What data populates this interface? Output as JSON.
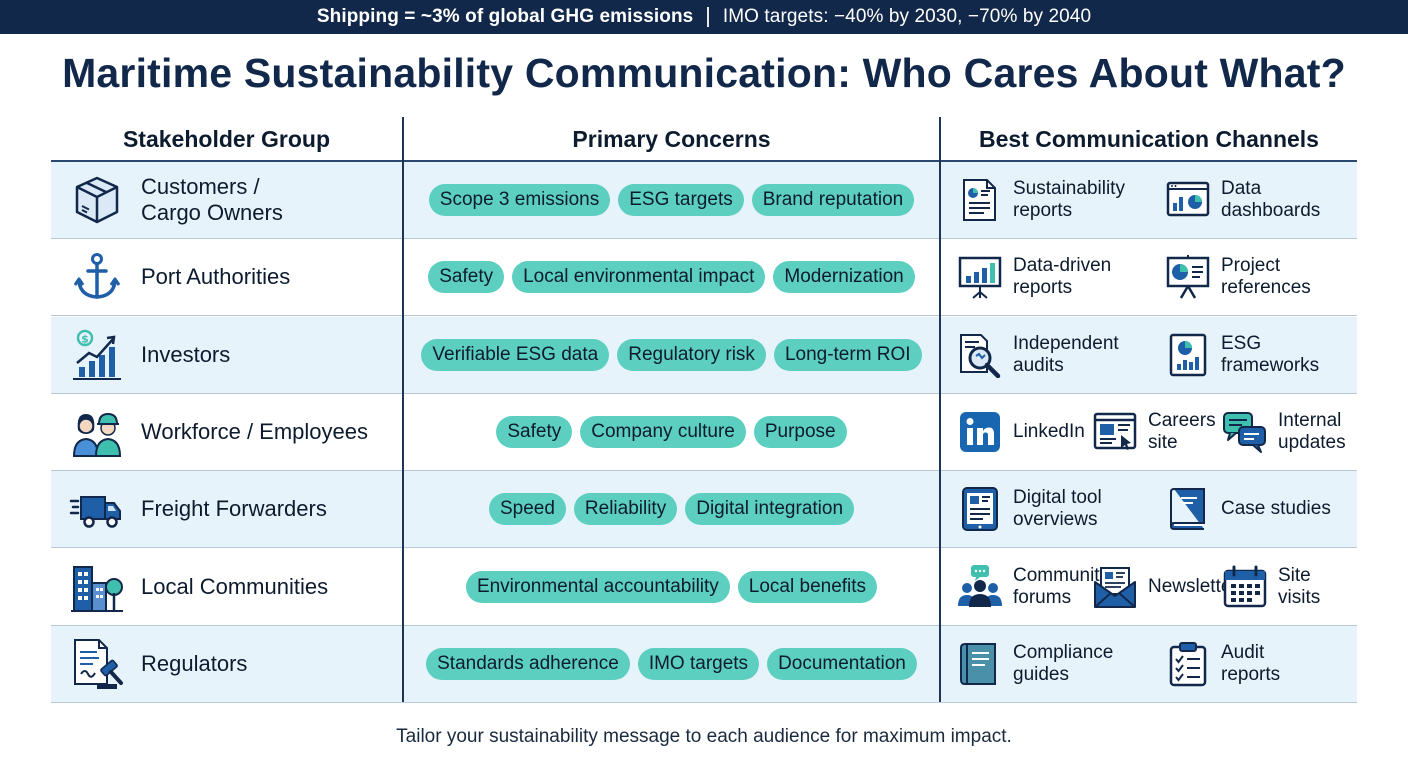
{
  "banner": {
    "stat": "Shipping = ~3% of global GHG emissions",
    "targets": "IMO targets: −40% by 2030, −70% by 2040"
  },
  "title": "Maritime Sustainability Communication: Who Cares About What?",
  "columns": {
    "group": "Stakeholder Group",
    "concerns": "Primary Concerns",
    "channels": "Best Communication Channels"
  },
  "rows": [
    {
      "icon": "package-box-icon",
      "group_lines": [
        "Customers /",
        "Cargo Owners"
      ],
      "concerns": [
        "Scope 3 emissions",
        "ESG targets",
        "Brand reputation"
      ],
      "channels": [
        {
          "icon": "report-document-icon",
          "lines": [
            "Sustainability",
            "reports"
          ]
        },
        {
          "icon": "dashboard-chart-icon",
          "lines": [
            "Data",
            "dashboards"
          ]
        }
      ]
    },
    {
      "icon": "anchor-icon",
      "group_lines": [
        "Port Authorities"
      ],
      "concerns": [
        "Safety",
        "Local environmental impact",
        "Modernization"
      ],
      "channels": [
        {
          "icon": "presentation-bar-chart-icon",
          "lines": [
            "Data-driven",
            "reports"
          ]
        },
        {
          "icon": "presentation-pie-chart-icon",
          "lines": [
            "Project",
            "references"
          ]
        }
      ]
    },
    {
      "icon": "investment-growth-icon",
      "group_lines": [
        "Investors"
      ],
      "concerns": [
        "Verifiable ESG data",
        "Regulatory risk",
        "Long-term ROI"
      ],
      "channels": [
        {
          "icon": "magnifier-document-icon",
          "lines": [
            "Independent",
            "audits"
          ]
        },
        {
          "icon": "esg-framework-icon",
          "lines": [
            "ESG",
            "frameworks"
          ]
        }
      ]
    },
    {
      "icon": "workers-icon",
      "group_lines": [
        "Workforce / Employees"
      ],
      "concerns": [
        "Safety",
        "Company culture",
        "Purpose"
      ],
      "channels": [
        {
          "icon": "linkedin-icon",
          "lines": [
            "LinkedIn"
          ]
        },
        {
          "icon": "careers-site-icon",
          "lines": [
            "Careers",
            "site"
          ]
        },
        {
          "icon": "chat-bubbles-icon",
          "lines": [
            "Internal",
            "updates"
          ]
        }
      ]
    },
    {
      "icon": "delivery-truck-icon",
      "group_lines": [
        "Freight Forwarders"
      ],
      "concerns": [
        "Speed",
        "Reliability",
        "Digital integration"
      ],
      "channels": [
        {
          "icon": "tablet-icon",
          "lines": [
            "Digital tool",
            "overviews"
          ]
        },
        {
          "icon": "book-icon",
          "lines": [
            "Case studies"
          ]
        }
      ]
    },
    {
      "icon": "city-buildings-icon",
      "group_lines": [
        "Local Communities"
      ],
      "concerns": [
        "Environmental accountability",
        "Local benefits"
      ],
      "channels": [
        {
          "icon": "community-forum-icon",
          "lines": [
            "Community",
            "forums"
          ]
        },
        {
          "icon": "newsletter-envelope-icon",
          "lines": [
            "Newsletters"
          ]
        },
        {
          "icon": "calendar-icon",
          "lines": [
            "Site",
            "visits"
          ]
        }
      ]
    },
    {
      "icon": "gavel-document-icon",
      "group_lines": [
        "Regulators"
      ],
      "concerns": [
        "Standards adherence",
        "IMO targets",
        "Documentation"
      ],
      "channels": [
        {
          "icon": "compliance-guide-icon",
          "lines": [
            "Compliance",
            "guides"
          ]
        },
        {
          "icon": "clipboard-checklist-icon",
          "lines": [
            "Audit",
            "reports"
          ]
        }
      ]
    }
  ],
  "footer": "Tailor your sustainability message to each audience for maximum impact.",
  "colors": {
    "navy": "#12284a",
    "chip_teal": "#5ccfc0",
    "row_shade": "#e7f3fb",
    "icon_blue": "#1f5fa8",
    "icon_teal": "#3fbfae"
  }
}
